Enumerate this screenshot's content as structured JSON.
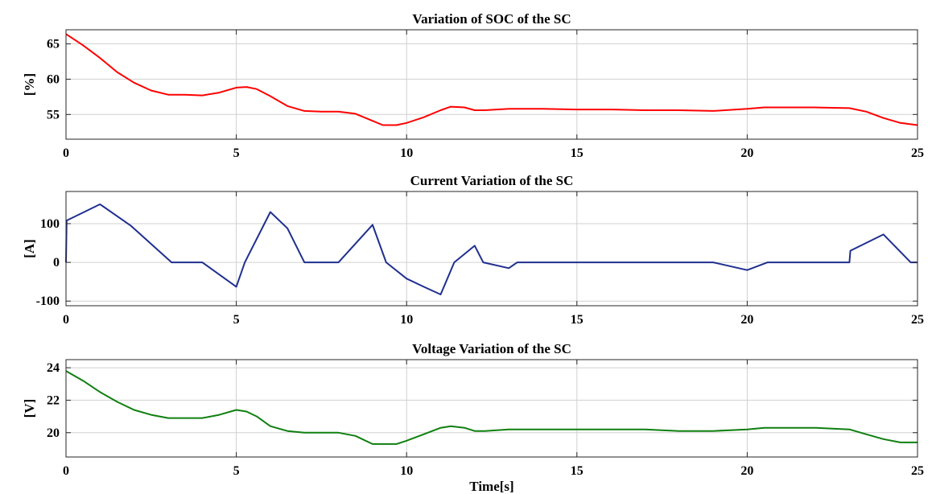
{
  "chart_data": [
    {
      "type": "line",
      "title": "Variation of SOC of the SC",
      "ylabel": "[%]",
      "xlabel": "",
      "xlim": [
        0,
        25
      ],
      "ylim": [
        51.5,
        67
      ],
      "xticks": [
        0,
        5,
        10,
        15,
        20,
        25
      ],
      "yticks": [
        55,
        60,
        65
      ],
      "grid": true,
      "series": [
        {
          "color": "#ff0000",
          "x": [
            0,
            0.5,
            1,
            1.5,
            2,
            2.5,
            3,
            3.5,
            4,
            4.5,
            5,
            5.3,
            5.6,
            6,
            6.5,
            7,
            7.5,
            8,
            8.5,
            9,
            9.3,
            9.7,
            10,
            10.5,
            11,
            11.3,
            11.7,
            12,
            12.3,
            13,
            14,
            15,
            16,
            17,
            18,
            19,
            20,
            20.5,
            21,
            22,
            23,
            23.5,
            24,
            24.5,
            25
          ],
          "y": [
            66.4,
            64.8,
            63.0,
            61.0,
            59.5,
            58.4,
            57.8,
            57.8,
            57.7,
            58.1,
            58.8,
            58.9,
            58.6,
            57.6,
            56.2,
            55.5,
            55.4,
            55.4,
            55.1,
            54.1,
            53.5,
            53.5,
            53.8,
            54.6,
            55.6,
            56.1,
            56.0,
            55.6,
            55.6,
            55.8,
            55.8,
            55.7,
            55.7,
            55.6,
            55.6,
            55.5,
            55.8,
            56.0,
            56.0,
            56.0,
            55.9,
            55.4,
            54.5,
            53.8,
            53.5
          ]
        }
      ]
    },
    {
      "type": "line",
      "title": "Current Variation of the SC",
      "ylabel": "[A]",
      "xlabel": "",
      "xlim": [
        0,
        25
      ],
      "ylim": [
        -112,
        183
      ],
      "xticks": [
        0,
        5,
        10,
        15,
        20,
        25
      ],
      "yticks": [
        -100,
        0,
        100
      ],
      "grid": true,
      "series": [
        {
          "color": "#1f2f8f",
          "x": [
            0,
            0.02,
            1,
            1.9,
            3.1,
            4,
            5,
            5.25,
            6,
            6.5,
            7,
            8,
            9,
            9.4,
            10,
            10.5,
            11,
            11.4,
            12,
            12.25,
            13,
            13.25,
            14,
            19,
            20,
            20.6,
            22,
            23,
            23.03,
            24,
            24.8,
            25
          ],
          "y": [
            0,
            108,
            150,
            95,
            0,
            0,
            -63,
            0,
            130,
            88,
            0,
            0,
            97,
            0,
            -42,
            -63,
            -83,
            0,
            43,
            0,
            -15,
            0,
            0,
            0,
            -20,
            0,
            0,
            0,
            30,
            72,
            0,
            0
          ]
        }
      ]
    },
    {
      "type": "line",
      "title": "Voltage Variation of the SC",
      "ylabel": "[V]",
      "xlabel": "Time[s]",
      "xlim": [
        0,
        25
      ],
      "ylim": [
        18.5,
        24.5
      ],
      "xticks": [
        0,
        5,
        10,
        15,
        20,
        25
      ],
      "yticks": [
        20,
        22,
        24
      ],
      "grid": true,
      "series": [
        {
          "color": "#0f7f0f",
          "x": [
            0,
            0.5,
            1,
            1.5,
            2,
            2.5,
            3,
            3.5,
            4,
            4.5,
            5,
            5.3,
            5.6,
            6,
            6.5,
            7,
            7.5,
            8,
            8.5,
            9,
            9.3,
            9.7,
            10,
            10.5,
            11,
            11.3,
            11.7,
            12,
            12.3,
            13,
            14,
            15,
            16,
            17,
            18,
            19,
            20,
            20.5,
            21,
            22,
            23,
            23.5,
            24,
            24.5,
            25
          ],
          "y": [
            23.8,
            23.2,
            22.5,
            21.9,
            21.4,
            21.1,
            20.9,
            20.9,
            20.9,
            21.1,
            21.4,
            21.3,
            21.0,
            20.4,
            20.1,
            20.0,
            20.0,
            20.0,
            19.8,
            19.3,
            19.3,
            19.3,
            19.5,
            19.9,
            20.3,
            20.4,
            20.3,
            20.1,
            20.1,
            20.2,
            20.2,
            20.2,
            20.2,
            20.2,
            20.1,
            20.1,
            20.2,
            20.3,
            20.3,
            20.3,
            20.2,
            19.9,
            19.6,
            19.4,
            19.4
          ]
        }
      ]
    }
  ]
}
